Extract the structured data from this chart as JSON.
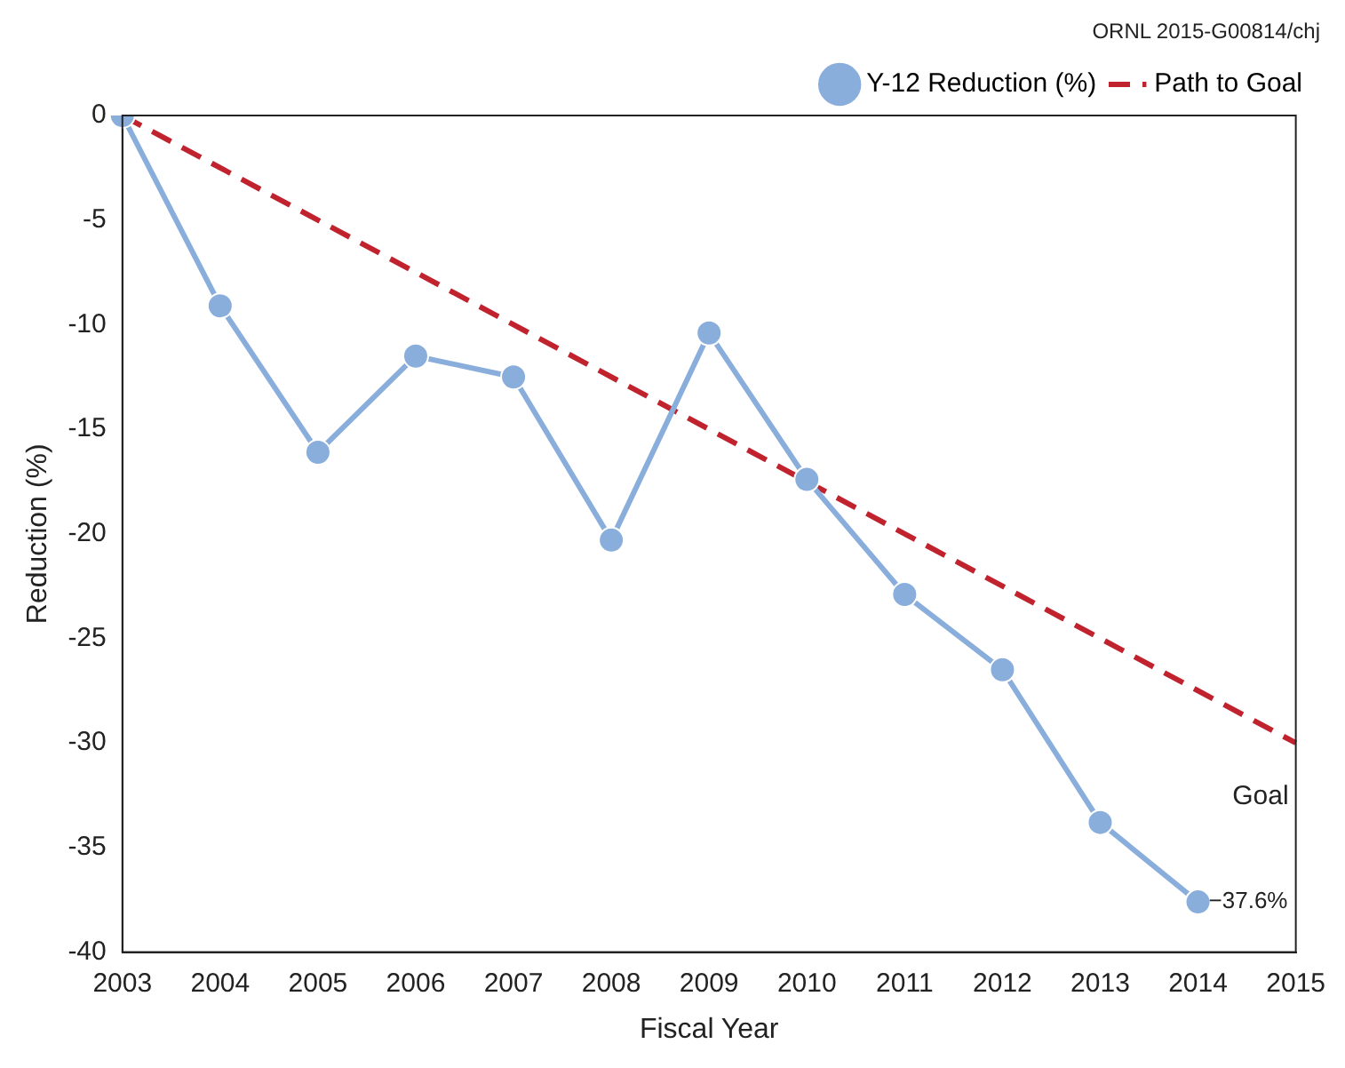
{
  "chart_data": {
    "type": "line",
    "xlabel": "Fiscal Year",
    "ylabel": "Reduction (%)",
    "categories": [
      "2003",
      "2004",
      "2005",
      "2006",
      "2007",
      "2008",
      "2009",
      "2010",
      "2011",
      "2012",
      "2013",
      "2014",
      "2015"
    ],
    "series": [
      {
        "name": "Y-12 Reduction (%)",
        "color": "#8aaedb",
        "marker": "circle",
        "line_style": "solid",
        "values": [
          0,
          -9.1,
          -16.1,
          -11.5,
          -12.5,
          -20.3,
          -10.4,
          -17.4,
          -22.9,
          -26.5,
          -33.8,
          -37.6,
          null
        ],
        "value_labels": [
          null,
          null,
          null,
          null,
          null,
          null,
          null,
          null,
          null,
          null,
          null,
          "−37.6%",
          null
        ]
      },
      {
        "name": "Path to Goal",
        "color": "#c0232d",
        "marker": "none",
        "line_style": "dashed",
        "values": [
          0,
          null,
          null,
          null,
          null,
          null,
          null,
          null,
          null,
          null,
          null,
          null,
          -30
        ]
      }
    ],
    "ylim": [
      -40,
      0
    ],
    "yticks": [
      -40,
      -35,
      -30,
      -25,
      -20,
      -15,
      -10,
      -5,
      0
    ],
    "grid": false,
    "legend": "top right",
    "annotations": [
      "ORNL 2015-G00814/chj",
      {
        "text": "Goal",
        "x": "2015",
        "y": -30
      }
    ]
  }
}
